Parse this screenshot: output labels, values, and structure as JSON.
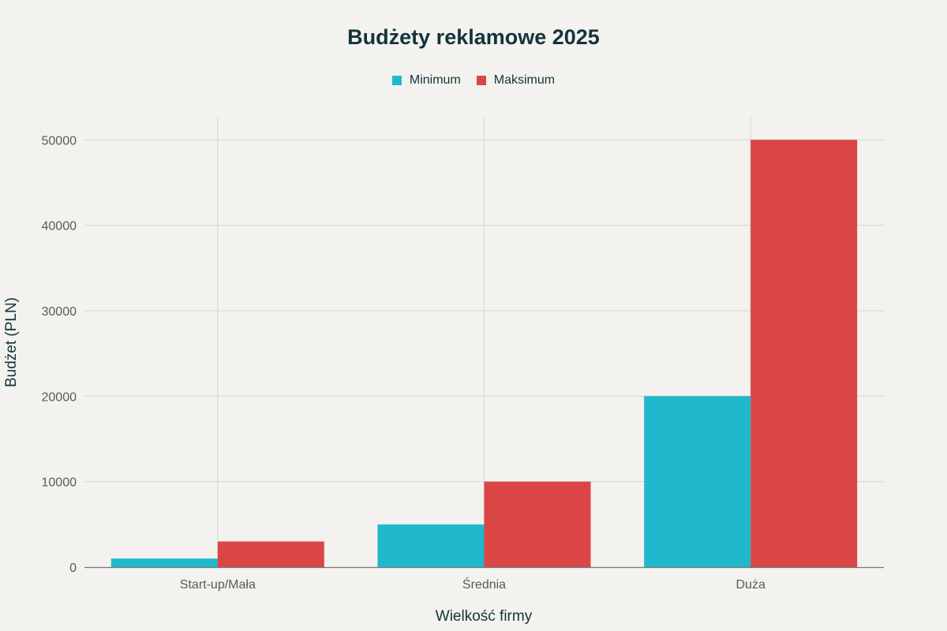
{
  "chart_data": {
    "type": "bar",
    "title": "Budżety reklamowe 2025",
    "xlabel": "Wielkość firmy",
    "ylabel": "Budżet (PLN)",
    "categories": [
      "Start-up/Mała",
      "Średnia",
      "Duża"
    ],
    "series": [
      {
        "name": "Minimum",
        "values": [
          1000,
          5000,
          20000
        ],
        "color": "#1fb8cd"
      },
      {
        "name": "Maksimum",
        "values": [
          3000,
          10000,
          50000
        ],
        "color": "#db4545"
      }
    ],
    "yticks": [
      "0",
      "10000",
      "20000",
      "30000",
      "40000",
      "50000"
    ],
    "ylim": [
      0,
      52700
    ],
    "grid": true,
    "legend": "top-center"
  }
}
